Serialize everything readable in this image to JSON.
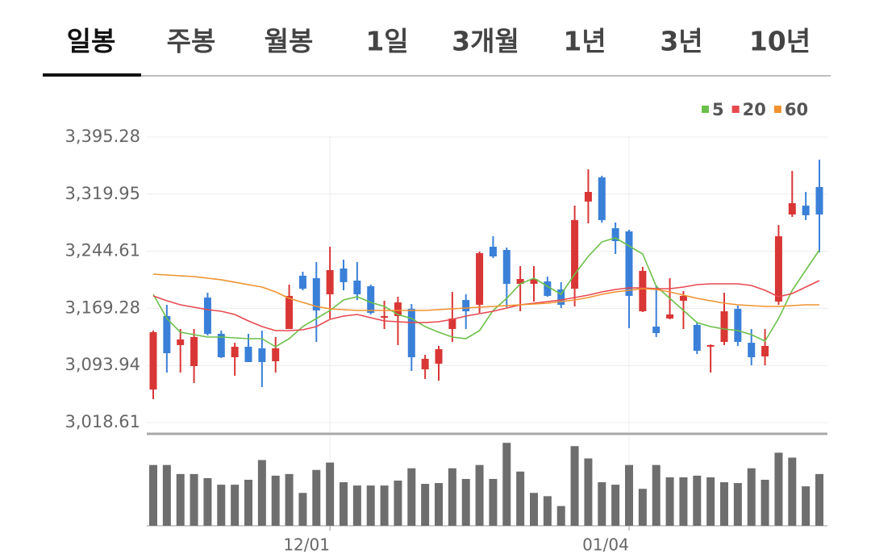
{
  "tabs": [
    "일봉",
    "주봉",
    "월봉",
    "1일",
    "3개월",
    "1년",
    "3년",
    "10년"
  ],
  "selected_tab": 0,
  "chart_data": {
    "type": "candlestick",
    "categories": [
      null,
      null,
      null,
      null,
      null,
      null,
      null,
      null,
      null,
      null,
      null,
      null,
      null,
      "12/01",
      null,
      null,
      null,
      null,
      null,
      null,
      null,
      null,
      null,
      null,
      null,
      null,
      null,
      null,
      null,
      null,
      null,
      null,
      null,
      null,
      null,
      "01/04",
      null,
      null,
      null,
      null,
      null,
      null,
      null,
      null,
      null,
      null,
      null,
      null,
      null,
      null
    ],
    "open": [
      3062.2,
      3159.1,
      3120.8,
      3093.1,
      3183.5,
      3135.7,
      3104.8,
      3118.6,
      3116.5,
      3099.5,
      3142.0,
      3212.3,
      3209.1,
      3187.8,
      3221.8,
      3205.9,
      3198.4,
      3156.9,
      3159.1,
      3168.6,
      3088.8,
      3096.3,
      3142.0,
      3180.3,
      3174.0,
      3250.6,
      3246.3,
      3201.6,
      3201.6,
      3204.8,
      3194.2,
      3195.2,
      3310.2,
      3342.1,
      3275.0,
      3270.8,
      3165.4,
      3145.2,
      3155.9,
      3179.3,
      3147.4,
      3119.7,
      3125.0,
      3168.6,
      3123.9,
      3105.9,
      3178.2,
      3293.1,
      3304.8,
      3329.3
    ],
    "high": [
      3139.9,
      3174.0,
      3142.0,
      3142.0,
      3189.9,
      3139.9,
      3123.9,
      3135.7,
      3139.9,
      3131.4,
      3200.6,
      3217.6,
      3230.4,
      3250.6,
      3233.5,
      3230.4,
      3200.6,
      3179.3,
      3184.6,
      3175.0,
      3108.0,
      3119.7,
      3191.0,
      3187.8,
      3244.2,
      3264.4,
      3249.5,
      3225.0,
      3225.0,
      3211.2,
      3203.8,
      3304.8,
      3352.7,
      3344.2,
      3282.5,
      3272.9,
      3224.0,
      3199.5,
      3209.1,
      3192.0,
      3150.5,
      3121.8,
      3189.9,
      3172.9,
      3142.0,
      3142.0,
      3279.3,
      3350.6,
      3322.9,
      3365.5
    ],
    "low": [
      3049.5,
      3084.6,
      3084.6,
      3070.7,
      3133.5,
      3103.7,
      3080.3,
      3098.4,
      3065.4,
      3084.6,
      3142.0,
      3193.1,
      3125.0,
      3155.9,
      3193.1,
      3180.3,
      3161.2,
      3142.0,
      3120.8,
      3086.7,
      3076.1,
      3073.9,
      3125.0,
      3142.0,
      3163.3,
      3235.7,
      3170.8,
      3165.4,
      3178.2,
      3184.6,
      3169.7,
      3171.8,
      3281.4,
      3282.5,
      3241.0,
      3143.1,
      3164.4,
      3131.4,
      3154.8,
      3142.0,
      3109.0,
      3084.6,
      3120.8,
      3119.7,
      3094.2,
      3094.2,
      3174.0,
      3289.9,
      3285.7,
      3243.1
    ],
    "close": [
      3137.8,
      3110.1,
      3128.2,
      3131.4,
      3135.7,
      3104.8,
      3118.6,
      3098.4,
      3098.4,
      3116.5,
      3185.7,
      3195.2,
      3166.5,
      3219.7,
      3203.8,
      3187.8,
      3163.3,
      3159.1,
      3177.1,
      3104.8,
      3102.7,
      3115.4,
      3155.9,
      3165.4,
      3242.1,
      3237.8,
      3201.6,
      3208.0,
      3208.0,
      3185.7,
      3174.0,
      3285.7,
      3322.9,
      3285.7,
      3258.0,
      3185.7,
      3218.7,
      3136.7,
      3161.2,
      3185.7,
      3113.3,
      3120.8,
      3165.4,
      3125.0,
      3104.8,
      3119.7,
      3264.4,
      3308.0,
      3292.1,
      3293.1
    ],
    "up_color": "#d93636",
    "down_color": "#3a80d8",
    "series": [
      {
        "name": "5",
        "color": "#6cc04a",
        "values": [
          3187.8,
          3155.9,
          3137.8,
          3134.6,
          3131.4,
          3131.4,
          3130.3,
          3129.3,
          3129.3,
          3118.6,
          3129.3,
          3145.2,
          3155.9,
          3166.5,
          3180.3,
          3184.6,
          3177.1,
          3171.8,
          3161.2,
          3155.9,
          3145.2,
          3137.8,
          3131.4,
          3129.3,
          3139.9,
          3166.5,
          3182.5,
          3201.6,
          3209.1,
          3198.4,
          3187.8,
          3214.4,
          3237.8,
          3257.0,
          3262.3,
          3251.6,
          3241.0,
          3198.4,
          3182.5,
          3166.5,
          3150.5,
          3145.2,
          3142.0,
          3139.9,
          3134.6,
          3126.1,
          3155.9,
          3193.1,
          3219.7,
          3246.3
        ]
      },
      {
        "name": "20",
        "color": "#e8484f",
        "values": [
          3185.7,
          3179.3,
          3174.0,
          3170.8,
          3167.6,
          3165.4,
          3161.2,
          3152.7,
          3145.2,
          3139.9,
          3139.9,
          3141.0,
          3145.2,
          3154.8,
          3159.1,
          3161.2,
          3156.9,
          3152.7,
          3151.6,
          3150.5,
          3150.5,
          3151.6,
          3154.8,
          3159.1,
          3162.3,
          3165.4,
          3169.7,
          3174.0,
          3176.1,
          3178.2,
          3180.3,
          3183.5,
          3186.7,
          3191.0,
          3194.2,
          3196.3,
          3196.3,
          3195.2,
          3195.2,
          3197.4,
          3200.6,
          3201.6,
          3201.6,
          3201.6,
          3199.5,
          3193.1,
          3184.6,
          3188.9,
          3197.4,
          3205.9
        ]
      },
      {
        "name": "60",
        "color": "#f0922f",
        "values": [
          3214.4,
          3213.3,
          3212.3,
          3211.2,
          3209.1,
          3207.0,
          3203.8,
          3200.6,
          3197.4,
          3191.0,
          3182.5,
          3177.1,
          3171.8,
          3168.6,
          3167.6,
          3166.5,
          3166.5,
          3166.5,
          3166.5,
          3166.5,
          3166.5,
          3167.6,
          3168.6,
          3169.7,
          3170.8,
          3171.8,
          3172.9,
          3174.0,
          3175.0,
          3176.1,
          3178.2,
          3180.3,
          3183.5,
          3187.8,
          3191.0,
          3193.1,
          3195.2,
          3194.2,
          3191.0,
          3186.7,
          3182.5,
          3179.3,
          3176.1,
          3174.0,
          3172.9,
          3171.8,
          3171.8,
          3172.9,
          3174.0,
          3174.0
        ]
      }
    ],
    "volume": {
      "color": "#6e6e6e",
      "ylim": [
        0,
        110
      ],
      "values": [
        74,
        74,
        63,
        63,
        58,
        50,
        50,
        56,
        80,
        61,
        63,
        40,
        68,
        77,
        53,
        49,
        49,
        49,
        55,
        70,
        51,
        52,
        70,
        57,
        74,
        57,
        101,
        66,
        40,
        36,
        24,
        97,
        82,
        53,
        50,
        74,
        45,
        74,
        59,
        59,
        61,
        59,
        53,
        52,
        70,
        56,
        89,
        83,
        48,
        63
      ]
    },
    "ylim": [
      3004.8,
      3411.2
    ],
    "yticks": [
      {
        "value": 3018.61,
        "label": "3,018.61"
      },
      {
        "value": 3093.94,
        "label": "3,093.94"
      },
      {
        "value": 3169.28,
        "label": "3,169.28"
      },
      {
        "value": 3244.61,
        "label": "3,244.61"
      },
      {
        "value": 3319.95,
        "label": "3,319.95"
      },
      {
        "value": 3395.28,
        "label": "3,395.28"
      }
    ],
    "grid": true,
    "legend": "top-right"
  }
}
